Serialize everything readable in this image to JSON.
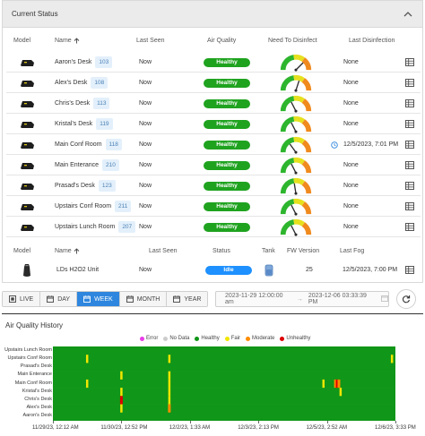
{
  "panel": {
    "title": "Current Status"
  },
  "sensor_table": {
    "headers": {
      "model": "Model",
      "name": "Name",
      "last_seen": "Last Seen",
      "air_quality": "Air Quality",
      "need_to_disinfect": "Need To Disinfect",
      "last_disinfection": "Last Disinfection"
    },
    "rows": [
      {
        "name": "Aaron's Desk",
        "id": "103",
        "last_seen": "Now",
        "air_quality": "Healthy",
        "last_disinfection": "None",
        "gauge": 0.75,
        "clock": false
      },
      {
        "name": "Alex's Desk",
        "id": "108",
        "last_seen": "Now",
        "air_quality": "Healthy",
        "last_disinfection": "None",
        "gauge": 0.6,
        "clock": false
      },
      {
        "name": "Chris's Desk",
        "id": "113",
        "last_seen": "Now",
        "air_quality": "Healthy",
        "last_disinfection": "None",
        "gauge": 0.35,
        "clock": false
      },
      {
        "name": "Kristal's Desk",
        "id": "119",
        "last_seen": "Now",
        "air_quality": "Healthy",
        "last_disinfection": "None",
        "gauge": 0.35,
        "clock": false
      },
      {
        "name": "Main Conf Room",
        "id": "118",
        "last_seen": "Now",
        "air_quality": "Healthy",
        "last_disinfection": "12/5/2023, 7:01 PM",
        "gauge": 0.3,
        "clock": true
      },
      {
        "name": "Main Enterance",
        "id": "210",
        "last_seen": "Now",
        "air_quality": "Healthy",
        "last_disinfection": "None",
        "gauge": 0.35,
        "clock": false
      },
      {
        "name": "Prasad's Desk",
        "id": "123",
        "last_seen": "Now",
        "air_quality": "Healthy",
        "last_disinfection": "None",
        "gauge": 0.45,
        "clock": false
      },
      {
        "name": "Upstairs Conf Room",
        "id": "211",
        "last_seen": "Now",
        "air_quality": "Healthy",
        "last_disinfection": "None",
        "gauge": 0.35,
        "clock": false
      },
      {
        "name": "Upstairs Lunch Room",
        "id": "207",
        "last_seen": "Now",
        "air_quality": "Healthy",
        "last_disinfection": "None",
        "gauge": 0.35,
        "clock": false
      }
    ]
  },
  "device_table": {
    "headers": {
      "model": "Model",
      "name": "Name",
      "last_seen": "Last Seen",
      "status": "Status",
      "tank": "Tank",
      "fw_version": "FW Version",
      "last_fog": "Last Fog"
    },
    "row": {
      "name": "LDs H2O2 Unit",
      "last_seen": "Now",
      "status": "Idle",
      "fw_version": "25",
      "last_fog": "12/5/2023, 7:00 PM"
    }
  },
  "toolbar": {
    "buttons": [
      {
        "label": "LIVE",
        "icon": "live-icon",
        "active": false
      },
      {
        "label": "DAY",
        "icon": "calendar-icon",
        "active": false
      },
      {
        "label": "WEEK",
        "icon": "calendar-icon",
        "active": true
      },
      {
        "label": "MONTH",
        "icon": "calendar-icon",
        "active": false
      },
      {
        "label": "YEAR",
        "icon": "calendar-icon",
        "active": false
      }
    ],
    "date_start": "2023-11-29 12:00:00 am",
    "date_end": "2023-12-06 03:33:39 PM"
  },
  "chart_data": {
    "type": "heatmap",
    "title": "Air Quality History",
    "legend": [
      {
        "label": "Error",
        "color": "#e83ce8"
      },
      {
        "label": "No Data",
        "color": "#cccccc"
      },
      {
        "label": "Healthy",
        "color": "#109618"
      },
      {
        "label": "Fair",
        "color": "#f2e600"
      },
      {
        "label": "Moderate",
        "color": "#ff8c00"
      },
      {
        "label": "Unhealthy",
        "color": "#dd0000"
      }
    ],
    "rows": [
      "Upstairs Lunch Room",
      "Upstairs Conf Room",
      "Prasad's Desk",
      "Main Enterance",
      "Main Conf Room",
      "Kristal's Desk",
      "Chris's Desk",
      "Alex's Desk",
      "Aaron's Desk"
    ],
    "x_ticks": [
      "11/29/23, 12:12 AM",
      "11/30/23, 12:52 PM",
      "12/2/23, 1:33 AM",
      "12/3/23, 2:13 PM",
      "12/5/23, 2:52 AM",
      "12/6/23, 3:33 PM"
    ],
    "base_state": "Healthy",
    "events": [
      {
        "row": "Upstairs Conf Room",
        "pos": 0.1,
        "state": "Fair"
      },
      {
        "row": "Upstairs Conf Room",
        "pos": 0.34,
        "state": "Fair"
      },
      {
        "row": "Upstairs Conf Room",
        "pos": 0.99,
        "state": "Fair"
      },
      {
        "row": "Main Conf Room",
        "pos": 0.1,
        "state": "Fair"
      },
      {
        "row": "Main Conf Room",
        "pos": 0.34,
        "state": "Fair"
      },
      {
        "row": "Main Conf Room",
        "pos": 0.79,
        "state": "Fair"
      },
      {
        "row": "Main Conf Room",
        "pos": 0.825,
        "state": "Moderate"
      },
      {
        "row": "Main Conf Room",
        "pos": 0.83,
        "state": "Unhealthy"
      },
      {
        "row": "Main Conf Room",
        "pos": 0.835,
        "state": "Moderate"
      },
      {
        "row": "Main Enterance",
        "pos": 0.2,
        "state": "Fair"
      },
      {
        "row": "Main Enterance",
        "pos": 0.34,
        "state": "Fair"
      },
      {
        "row": "Kristal's Desk",
        "pos": 0.2,
        "state": "Fair"
      },
      {
        "row": "Kristal's Desk",
        "pos": 0.34,
        "state": "Fair"
      },
      {
        "row": "Kristal's Desk",
        "pos": 0.84,
        "state": "Fair"
      },
      {
        "row": "Chris's Desk",
        "pos": 0.2,
        "state": "Unhealthy"
      },
      {
        "row": "Chris's Desk",
        "pos": 0.34,
        "state": "Fair"
      },
      {
        "row": "Alex's Desk",
        "pos": 0.2,
        "state": "Fair"
      },
      {
        "row": "Alex's Desk",
        "pos": 0.34,
        "state": "Moderate"
      }
    ]
  }
}
